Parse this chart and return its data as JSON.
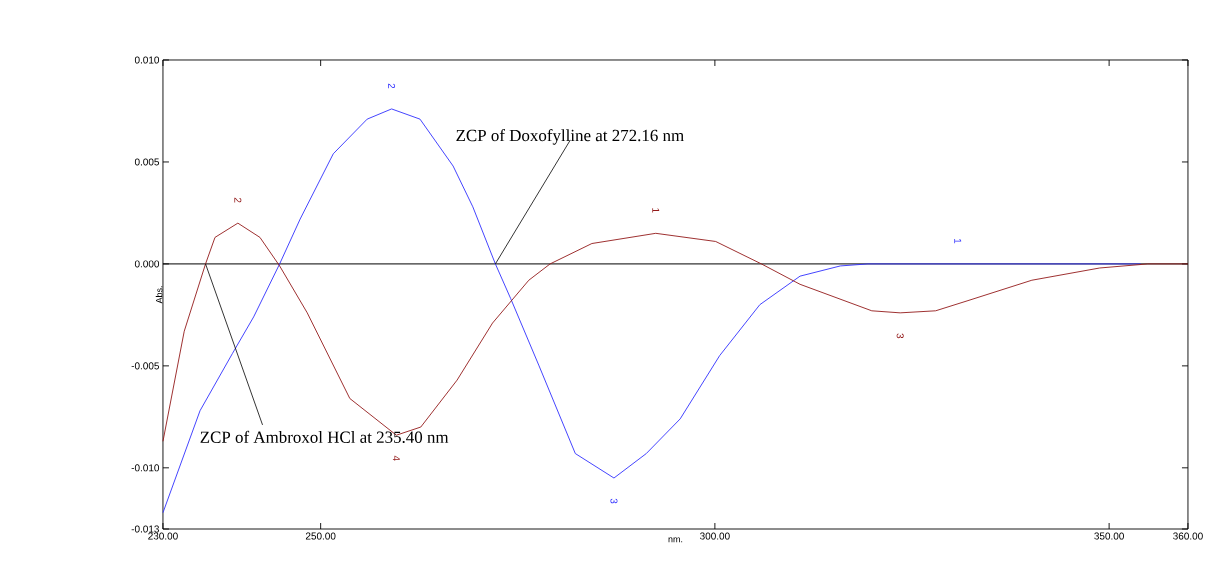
{
  "chart_data": {
    "type": "line",
    "xlabel": "nm.",
    "ylabel": "Abs.",
    "xlim": [
      230,
      360
    ],
    "ylim": [
      -0.013,
      0.01
    ],
    "xticks": [
      {
        "value": 230,
        "label": "230.00"
      },
      {
        "value": 250,
        "label": "250.00"
      },
      {
        "value": 300,
        "label": "300.00"
      },
      {
        "value": 350,
        "label": "350.00"
      },
      {
        "value": 360,
        "label": "360.00"
      }
    ],
    "yticks": [
      {
        "value": -0.013,
        "label": "-0.013"
      },
      {
        "value": -0.01,
        "label": "-0.010"
      },
      {
        "value": -0.005,
        "label": "-0.005"
      },
      {
        "value": 0,
        "label": "0.000"
      },
      {
        "value": 0.005,
        "label": "0.005"
      },
      {
        "value": 0.01,
        "label": "0.010"
      }
    ],
    "ref_lines": [
      {
        "axis": "y",
        "value": 0,
        "color": "#000000"
      }
    ],
    "annotations": [
      {
        "text": "ZCP of Doxofylline at 272.16 nm",
        "x": 272.16,
        "y": 0
      },
      {
        "text": "ZCP of Ambroxol HCl at 235.40 nm",
        "x": 235.4,
        "y": 0
      },
      {
        "text": "2",
        "x": 259.0,
        "y": 0.0076
      },
      {
        "text": "3",
        "x": 287.2,
        "y": -0.0105
      },
      {
        "text": "1",
        "x": 330.8,
        "y": 0
      },
      {
        "text": "2",
        "x": 239.5,
        "y": 0.002
      },
      {
        "text": "4",
        "x": 259.6,
        "y": -0.0084
      },
      {
        "text": "1",
        "x": 292.5,
        "y": 0.0015
      },
      {
        "text": "3",
        "x": 323.5,
        "y": -0.0024
      }
    ],
    "series": [
      {
        "color": "#3030ff",
        "x": [
          230,
          234.7,
          238.8,
          241.5,
          244.8,
          247.4,
          251.6,
          255.9,
          259.0,
          262.6,
          266.8,
          269.3,
          272.16,
          274.1,
          277.7,
          282.3,
          287.2,
          291.3,
          295.6,
          300.6,
          305.7,
          310.8,
          315.9,
          319.4,
          354
        ],
        "values": [
          -0.0122,
          -0.0072,
          -0.0044,
          -0.0026,
          0,
          0.0022,
          0.0054,
          0.0071,
          0.0076,
          0.0071,
          0.0048,
          0.0028,
          0,
          -0.0017,
          -0.005,
          -0.0093,
          -0.0105,
          -0.0093,
          -0.0076,
          -0.0045,
          -0.002,
          -0.0006,
          -0.0001,
          0,
          0
        ]
      },
      {
        "color": "#931a1a",
        "x": [
          230,
          232.7,
          235.4,
          236.6,
          239.5,
          242.3,
          244.8,
          248.3,
          253.7,
          259.6,
          262.7,
          267.3,
          271.8,
          276.4,
          279.1,
          284.4,
          292.5,
          300.1,
          305.9,
          310.8,
          319.9,
          323.5,
          328,
          332.1,
          340.2,
          348.8,
          354.9,
          360
        ],
        "values": [
          -0.0087,
          -0.0033,
          0,
          0.0013,
          0.002,
          0.0013,
          -0.0001,
          -0.0024,
          -0.0066,
          -0.0084,
          -0.008,
          -0.0057,
          -0.0029,
          -0.0008,
          0,
          0.001,
          0.0015,
          0.0011,
          0,
          -0.001,
          -0.0023,
          -0.0024,
          -0.0023,
          -0.0018,
          -0.0008,
          -0.0002,
          0,
          0
        ]
      }
    ]
  }
}
